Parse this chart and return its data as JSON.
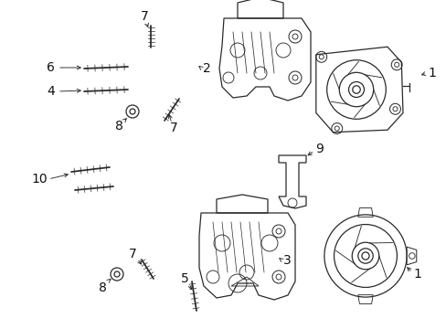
{
  "bg_color": "#ffffff",
  "line_color": "#2a2a2a",
  "label_color": "#111111",
  "font_size": 10,
  "lw": 0.9
}
